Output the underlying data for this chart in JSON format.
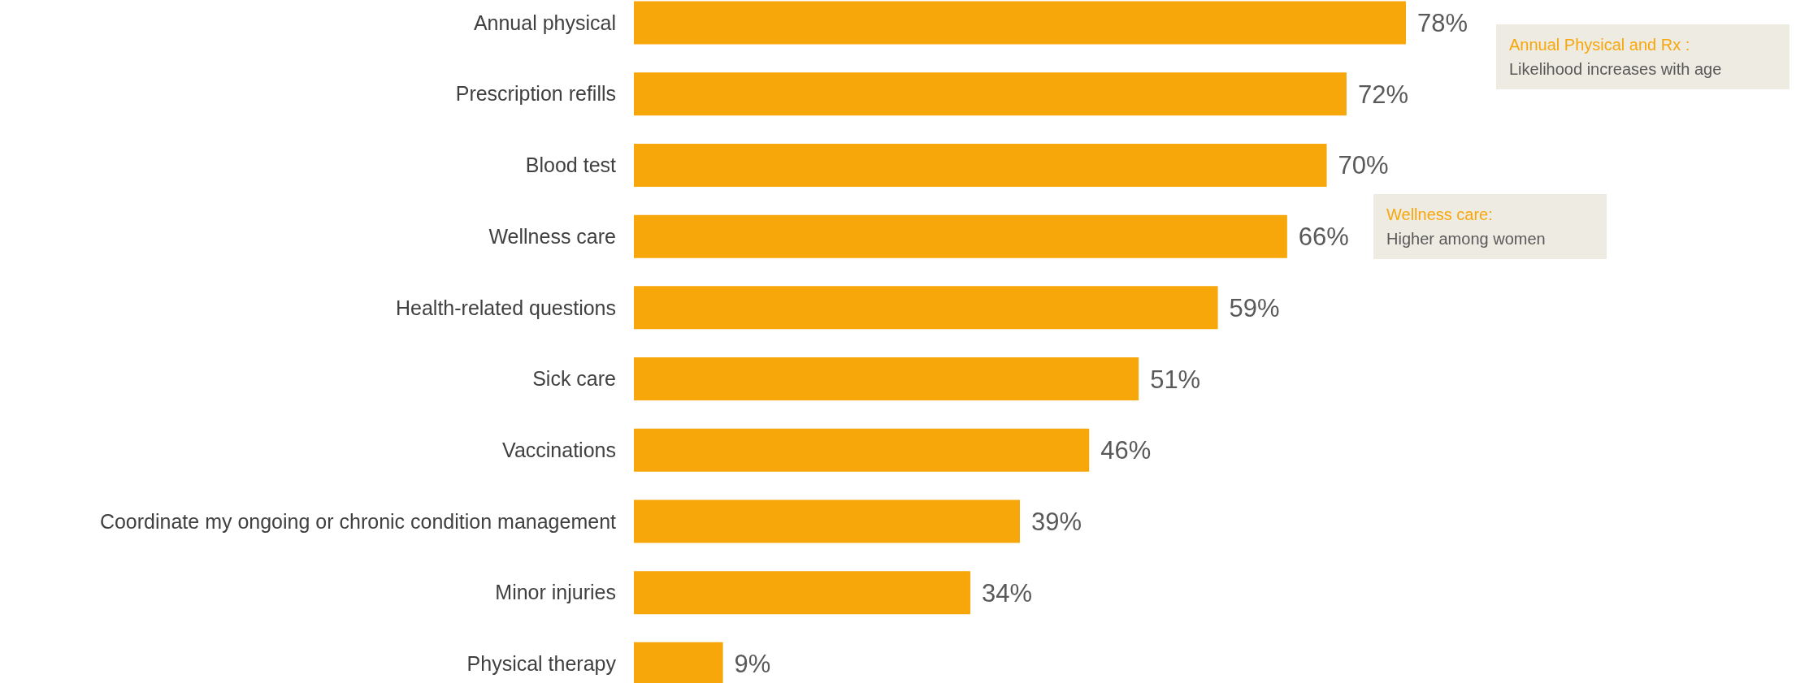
{
  "chart_data": {
    "type": "bar",
    "orientation": "horizontal",
    "categories": [
      "Annual physical",
      "Prescription refills",
      "Blood test",
      "Wellness care",
      "Health-related questions",
      "Sick care",
      "Vaccinations",
      "Coordinate my ongoing or chronic condition management",
      "Minor injuries",
      "Physical therapy"
    ],
    "values": [
      78,
      72,
      70,
      66,
      59,
      51,
      46,
      39,
      34,
      9
    ],
    "value_labels": [
      "78%",
      "72%",
      "70%",
      "66%",
      "59%",
      "51%",
      "46%",
      "39%",
      "34%",
      "9%"
    ],
    "color": "#f7a70a",
    "annotations": [
      "Annual Physical and Rx :",
      "Likelihood increases with age",
      "Wellness care:",
      "Higher among women"
    ]
  }
}
